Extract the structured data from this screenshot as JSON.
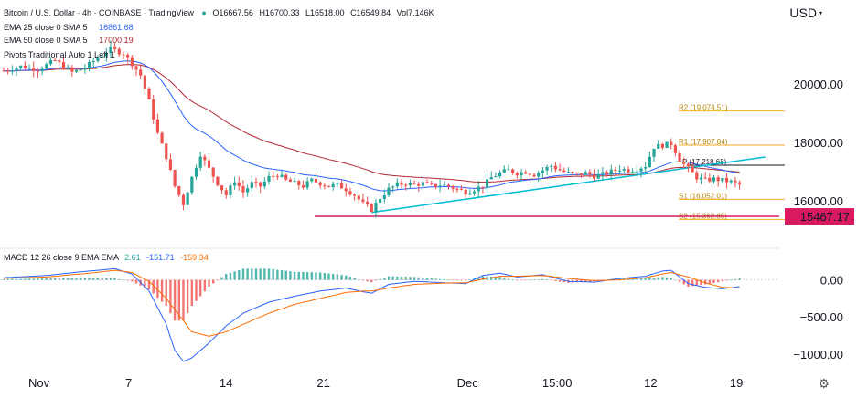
{
  "header": {
    "symbol": "Bitcoin / U.S. Dollar · 4h · COINBASE · TradingView",
    "o": "O16667.56",
    "h": "H16700.33",
    "l": "L16518.00",
    "c": "C16549.84",
    "vol": "Vol7.146K",
    "ema25_label": "EMA 25 close 0 SMA 5",
    "ema25_value": "16861.68",
    "ema50_label": "EMA 50 close 0 SMA 5",
    "ema50_value": "17000.19",
    "pivots_label": "Pivots Traditional Auto 1 Left 1",
    "macd_label": "MACD 12 26 close 9 EMA EMA",
    "macd_v1": "2.61",
    "macd_v2": "-151.71",
    "macd_v3": "-159.34"
  },
  "currency": "USD",
  "colors": {
    "up": "#26a69a",
    "down": "#ef5350",
    "ema25": "#2962ff",
    "ema50": "#b22833",
    "trend": "#00bcd4",
    "support": "#d81b60",
    "pivot": "#f9a825",
    "macd_line": "#2962ff",
    "signal_line": "#ff6d00"
  },
  "chart_data": [
    {
      "type": "candlestick",
      "title": "Bitcoin / U.S. Dollar · 4h · COINBASE",
      "x_ticks": [
        "Nov",
        "7",
        "14",
        "21",
        "Dec",
        "15:00",
        "12",
        "19"
      ],
      "y_ticks": [
        "20000.00",
        "18000.00",
        "16000.00"
      ],
      "ylim": [
        14800,
        21500
      ],
      "price_path": [
        [
          0,
          20450
        ],
        [
          4,
          20600
        ],
        [
          8,
          20500
        ],
        [
          12,
          20800
        ],
        [
          16,
          20400
        ],
        [
          19,
          20550
        ],
        [
          22,
          20900
        ],
        [
          25,
          21200
        ],
        [
          28,
          21050
        ],
        [
          30,
          20700
        ],
        [
          32,
          20300
        ],
        [
          34,
          19400
        ],
        [
          36,
          18300
        ],
        [
          38,
          17500
        ],
        [
          40,
          16500
        ],
        [
          42,
          15900
        ],
        [
          44,
          16800
        ],
        [
          46,
          17600
        ],
        [
          48,
          17100
        ],
        [
          50,
          16600
        ],
        [
          52,
          16200
        ],
        [
          54,
          16700
        ],
        [
          56,
          16300
        ],
        [
          58,
          16600
        ],
        [
          60,
          16500
        ],
        [
          62,
          16800
        ],
        [
          64,
          16900
        ],
        [
          66,
          16700
        ],
        [
          68,
          16600
        ],
        [
          70,
          16500
        ],
        [
          72,
          16700
        ],
        [
          74,
          16600
        ],
        [
          76,
          16500
        ],
        [
          78,
          16550
        ],
        [
          80,
          16400
        ],
        [
          82,
          16200
        ],
        [
          84,
          15900
        ],
        [
          86,
          15700
        ],
        [
          88,
          16100
        ],
        [
          90,
          16400
        ],
        [
          92,
          16550
        ],
        [
          94,
          16600
        ],
        [
          96,
          16550
        ],
        [
          98,
          16600
        ],
        [
          100,
          16500
        ],
        [
          102,
          16550
        ],
        [
          104,
          16500
        ],
        [
          106,
          16400
        ],
        [
          108,
          16300
        ],
        [
          110,
          16400
        ],
        [
          112,
          16500
        ],
        [
          114,
          16800
        ],
        [
          116,
          16950
        ],
        [
          118,
          17050
        ],
        [
          120,
          16950
        ],
        [
          122,
          17000
        ],
        [
          124,
          16900
        ],
        [
          126,
          17050
        ],
        [
          128,
          17200
        ],
        [
          130,
          17050
        ],
        [
          132,
          16950
        ],
        [
          134,
          16900
        ],
        [
          136,
          16950
        ],
        [
          138,
          16850
        ],
        [
          140,
          16900
        ],
        [
          142,
          17000
        ],
        [
          144,
          17100
        ],
        [
          146,
          17050
        ],
        [
          148,
          17100
        ],
        [
          150,
          17200
        ],
        [
          152,
          17850
        ],
        [
          154,
          17900
        ],
        [
          156,
          17950
        ],
        [
          157,
          17700
        ],
        [
          158,
          17400
        ],
        [
          160,
          17100
        ],
        [
          162,
          16800
        ],
        [
          164,
          16700
        ],
        [
          166,
          16750
        ],
        [
          168,
          16700
        ],
        [
          170,
          16650
        ],
        [
          172,
          16550
        ]
      ],
      "last_price": "15467.17",
      "support_level": 15467.17,
      "trendline": [
        [
          86,
          15600
        ],
        [
          178,
          17500
        ]
      ],
      "pivot_levels": [
        {
          "label": "R2 (19,074.51)",
          "value": 19074.51
        },
        {
          "label": "R1 (17,907.84)",
          "value": 17907.84
        },
        {
          "label": "P (17,218.68)",
          "value": 17218.68
        },
        {
          "label": "S1 (16,052.01)",
          "value": 16052.01
        },
        {
          "label": "S2 (15,362.85)",
          "value": 15362.85
        }
      ]
    },
    {
      "type": "macd",
      "title": "MACD 12 26 close 9 EMA EMA",
      "y_ticks": [
        "0.00",
        "−500.00",
        "−1000.00"
      ],
      "ylim": [
        -1150,
        180
      ],
      "macd_path": [
        [
          0,
          30
        ],
        [
          10,
          60
        ],
        [
          20,
          120
        ],
        [
          26,
          150
        ],
        [
          30,
          80
        ],
        [
          34,
          -150
        ],
        [
          38,
          -600
        ],
        [
          40,
          -950
        ],
        [
          42,
          -1100
        ],
        [
          44,
          -1050
        ],
        [
          48,
          -850
        ],
        [
          52,
          -620
        ],
        [
          56,
          -450
        ],
        [
          62,
          -300
        ],
        [
          68,
          -220
        ],
        [
          74,
          -150
        ],
        [
          80,
          -110
        ],
        [
          84,
          -160
        ],
        [
          86,
          -180
        ],
        [
          90,
          -60
        ],
        [
          96,
          -20
        ],
        [
          104,
          -40
        ],
        [
          108,
          -50
        ],
        [
          112,
          60
        ],
        [
          116,
          90
        ],
        [
          120,
          40
        ],
        [
          126,
          70
        ],
        [
          132,
          -20
        ],
        [
          138,
          -30
        ],
        [
          144,
          20
        ],
        [
          150,
          50
        ],
        [
          154,
          120
        ],
        [
          156,
          130
        ],
        [
          160,
          -50
        ],
        [
          164,
          -100
        ],
        [
          168,
          -120
        ],
        [
          172,
          -90
        ]
      ],
      "signal_path": [
        [
          0,
          20
        ],
        [
          10,
          40
        ],
        [
          20,
          90
        ],
        [
          26,
          130
        ],
        [
          30,
          100
        ],
        [
          34,
          -20
        ],
        [
          38,
          -250
        ],
        [
          42,
          -550
        ],
        [
          44,
          -700
        ],
        [
          48,
          -760
        ],
        [
          52,
          -700
        ],
        [
          56,
          -600
        ],
        [
          62,
          -450
        ],
        [
          68,
          -330
        ],
        [
          74,
          -250
        ],
        [
          80,
          -170
        ],
        [
          84,
          -150
        ],
        [
          86,
          -150
        ],
        [
          90,
          -110
        ],
        [
          96,
          -60
        ],
        [
          104,
          -40
        ],
        [
          108,
          -40
        ],
        [
          112,
          10
        ],
        [
          116,
          50
        ],
        [
          120,
          50
        ],
        [
          126,
          60
        ],
        [
          132,
          20
        ],
        [
          138,
          -10
        ],
        [
          144,
          0
        ],
        [
          150,
          30
        ],
        [
          154,
          80
        ],
        [
          156,
          100
        ],
        [
          160,
          40
        ],
        [
          164,
          -40
        ],
        [
          168,
          -100
        ],
        [
          172,
          -110
        ]
      ]
    }
  ]
}
